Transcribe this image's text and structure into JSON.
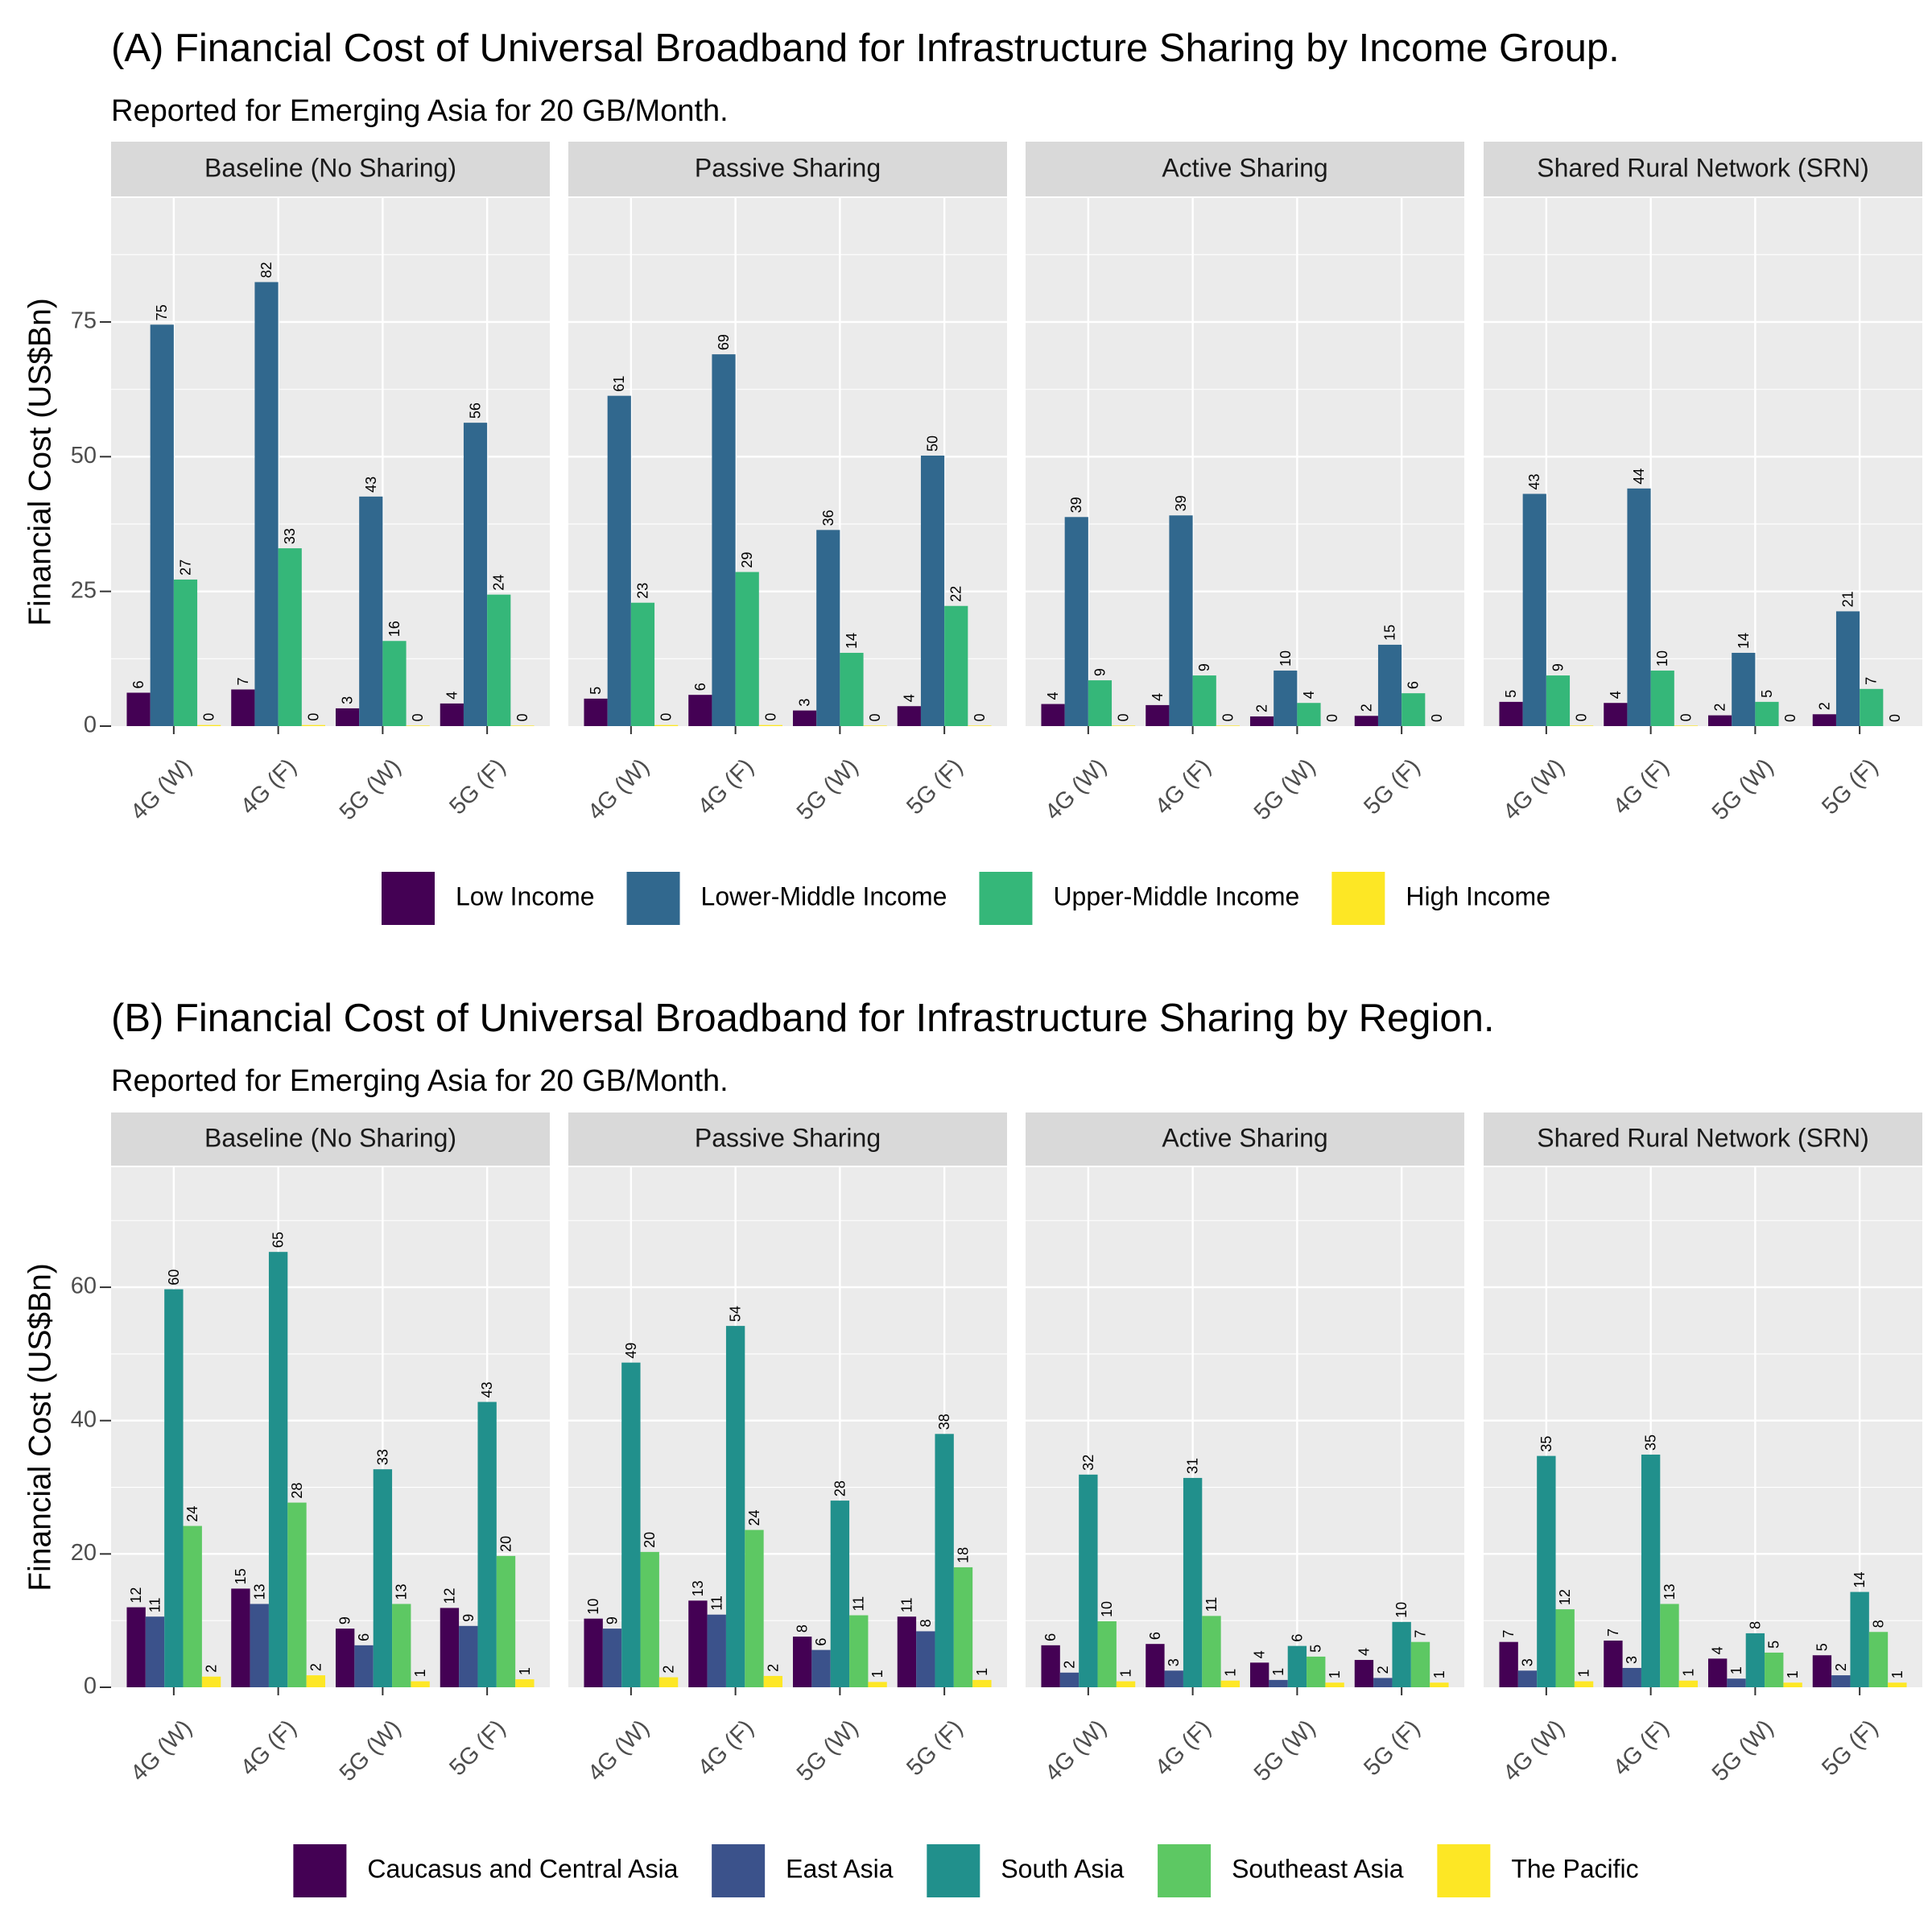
{
  "chart_data": [
    {
      "type": "bar",
      "title": "(A) Financial Cost of Universal Broadband for Infrastructure Sharing by Income Group.",
      "subtitle": "Reported for Emerging Asia for 20 GB/Month.",
      "ylabel": "Financial Cost (US$Bn)",
      "xlabel": "",
      "ylim": [
        0,
        98
      ],
      "yticks": [
        0,
        25,
        50,
        75
      ],
      "facets": [
        "Baseline (No Sharing)",
        "Passive Sharing",
        "Active Sharing",
        "Shared Rural Network (SRN)"
      ],
      "categories": [
        "4G (W)",
        "4G (F)",
        "5G (W)",
        "5G (F)"
      ],
      "legend_position": "bottom",
      "series": [
        {
          "name": "Low Income",
          "color": "#440154",
          "values": [
            [
              6.2,
              6.8,
              3.3,
              4.2
            ],
            [
              5.1,
              5.8,
              2.9,
              3.7
            ],
            [
              4.1,
              3.9,
              1.8,
              1.9
            ],
            [
              4.5,
              4.3,
              2.0,
              2.2
            ]
          ],
          "labels": [
            [
              "6",
              "7",
              "3",
              "4"
            ],
            [
              "5",
              "6",
              "3",
              "4"
            ],
            [
              "4",
              "4",
              "2",
              "2"
            ],
            [
              "5",
              "4",
              "2",
              "2"
            ]
          ]
        },
        {
          "name": "Lower-Middle Income",
          "color": "#31688e",
          "values": [
            [
              74.5,
              82.4,
              42.6,
              56.3
            ],
            [
              61.3,
              69.0,
              36.4,
              50.2
            ],
            [
              38.8,
              39.1,
              10.3,
              15.1
            ],
            [
              43.1,
              44.1,
              13.6,
              21.3
            ]
          ],
          "labels": [
            [
              "75",
              "82",
              "43",
              "56"
            ],
            [
              "61",
              "69",
              "36",
              "50"
            ],
            [
              "39",
              "39",
              "10",
              "15"
            ],
            [
              "43",
              "44",
              "14",
              "21"
            ]
          ]
        },
        {
          "name": "Upper-Middle Income",
          "color": "#35b779",
          "values": [
            [
              27.2,
              33.0,
              15.8,
              24.4
            ],
            [
              22.9,
              28.6,
              13.6,
              22.3
            ],
            [
              8.5,
              9.4,
              4.3,
              6.1
            ],
            [
              9.4,
              10.3,
              4.5,
              6.9
            ]
          ],
          "labels": [
            [
              "27",
              "33",
              "16",
              "24"
            ],
            [
              "23",
              "29",
              "14",
              "22"
            ],
            [
              "9",
              "9",
              "4",
              "6"
            ],
            [
              "9",
              "10",
              "5",
              "7"
            ]
          ]
        },
        {
          "name": "High Income",
          "color": "#fde725",
          "values": [
            [
              0.2,
              0.2,
              0.1,
              0.1
            ],
            [
              0.2,
              0.2,
              0.1,
              0.1
            ],
            [
              0.1,
              0.1,
              0.0,
              0.0
            ],
            [
              0.1,
              0.1,
              0.0,
              0.0
            ]
          ],
          "labels": [
            [
              "0",
              "0",
              "0",
              "0"
            ],
            [
              "0",
              "0",
              "0",
              "0"
            ],
            [
              "0",
              "0",
              "0",
              "0"
            ],
            [
              "0",
              "0",
              "0",
              "0"
            ]
          ]
        }
      ]
    },
    {
      "type": "bar",
      "title": "(B) Financial Cost of Universal Broadband for Infrastructure Sharing by Region.",
      "subtitle": "Reported for Emerging Asia for 20 GB/Month.",
      "ylabel": "Financial Cost (US$Bn)",
      "xlabel": "",
      "ylim": [
        0,
        78
      ],
      "yticks": [
        0,
        20,
        40,
        60
      ],
      "facets": [
        "Baseline (No Sharing)",
        "Passive Sharing",
        "Active Sharing",
        "Shared Rural Network (SRN)"
      ],
      "categories": [
        "4G (W)",
        "4G (F)",
        "5G (W)",
        "5G (F)"
      ],
      "legend_position": "bottom",
      "series": [
        {
          "name": "Caucasus and Central Asia",
          "color": "#440154",
          "values": [
            [
              12.0,
              14.8,
              8.8,
              11.9
            ],
            [
              10.3,
              13.0,
              7.6,
              10.6
            ],
            [
              6.3,
              6.5,
              3.7,
              4.1
            ],
            [
              6.8,
              7.0,
              4.3,
              4.8
            ]
          ],
          "labels": [
            [
              "12",
              "15",
              "9",
              "12"
            ],
            [
              "10",
              "13",
              "8",
              "11"
            ],
            [
              "6",
              "6",
              "4",
              "4"
            ],
            [
              "7",
              "7",
              "4",
              "5"
            ]
          ]
        },
        {
          "name": "East Asia",
          "color": "#3b528b",
          "values": [
            [
              10.6,
              12.5,
              6.3,
              9.2
            ],
            [
              8.8,
              10.9,
              5.6,
              8.4
            ],
            [
              2.2,
              2.5,
              1.1,
              1.4
            ],
            [
              2.5,
              2.9,
              1.3,
              1.8
            ]
          ],
          "labels": [
            [
              "11",
              "13",
              "6",
              "9"
            ],
            [
              "9",
              "11",
              "6",
              "8"
            ],
            [
              "2",
              "3",
              "1",
              "2"
            ],
            [
              "3",
              "3",
              "1",
              "2"
            ]
          ]
        },
        {
          "name": "South Asia",
          "color": "#21908c",
          "values": [
            [
              59.7,
              65.3,
              32.7,
              42.8
            ],
            [
              48.7,
              54.2,
              28.0,
              38.0
            ],
            [
              31.9,
              31.4,
              6.2,
              9.8
            ],
            [
              34.7,
              34.9,
              8.1,
              14.3
            ]
          ],
          "labels": [
            [
              "60",
              "65",
              "33",
              "43"
            ],
            [
              "49",
              "54",
              "28",
              "38"
            ],
            [
              "32",
              "31",
              "6",
              "10"
            ],
            [
              "35",
              "35",
              "8",
              "14"
            ]
          ]
        },
        {
          "name": "Southeast Asia",
          "color": "#5dc863",
          "values": [
            [
              24.2,
              27.7,
              12.5,
              19.7
            ],
            [
              20.3,
              23.6,
              10.8,
              18.0
            ],
            [
              9.9,
              10.7,
              4.6,
              6.8
            ],
            [
              11.7,
              12.5,
              5.2,
              8.3
            ]
          ],
          "labels": [
            [
              "24",
              "28",
              "13",
              "20"
            ],
            [
              "20",
              "24",
              "11",
              "18"
            ],
            [
              "10",
              "11",
              "5",
              "7"
            ],
            [
              "12",
              "13",
              "5",
              "8"
            ]
          ]
        },
        {
          "name": "The Pacific",
          "color": "#fde725",
          "values": [
            [
              1.6,
              1.8,
              0.9,
              1.2
            ],
            [
              1.5,
              1.7,
              0.8,
              1.1
            ],
            [
              0.9,
              1.0,
              0.7,
              0.7
            ],
            [
              0.9,
              1.0,
              0.7,
              0.7
            ]
          ],
          "labels": [
            [
              "2",
              "2",
              "1",
              "1"
            ],
            [
              "2",
              "2",
              "1",
              "1"
            ],
            [
              "1",
              "1",
              "1",
              "1"
            ],
            [
              "1",
              "1",
              "1",
              "1"
            ]
          ]
        }
      ]
    }
  ]
}
